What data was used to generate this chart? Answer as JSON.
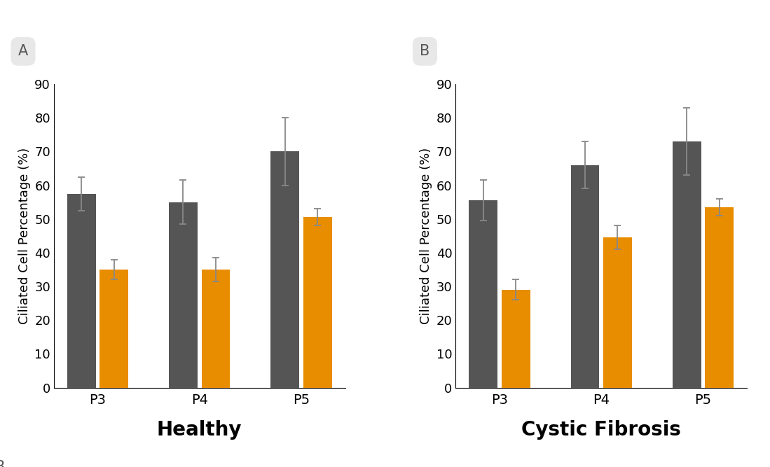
{
  "panel_A": {
    "title": "Healthy",
    "passages": [
      "P3",
      "P4",
      "P5"
    ],
    "gray_values": [
      57.5,
      55.0,
      70.0
    ],
    "orange_values": [
      35.0,
      35.0,
      50.5
    ],
    "gray_errors": [
      5.0,
      6.5,
      10.0
    ],
    "orange_errors": [
      3.0,
      3.5,
      2.5
    ]
  },
  "panel_B": {
    "title": "Cystic Fibrosis",
    "passages": [
      "P3",
      "P4",
      "P5"
    ],
    "gray_values": [
      55.5,
      66.0,
      73.0
    ],
    "orange_values": [
      29.0,
      44.5,
      53.5
    ],
    "gray_errors": [
      6.0,
      7.0,
      10.0
    ],
    "orange_errors": [
      3.0,
      3.5,
      2.5
    ]
  },
  "gray_color": "#555555",
  "orange_color": "#E88C00",
  "bar_width": 0.28,
  "bar_gap": 0.04,
  "ylim": [
    0,
    90
  ],
  "yticks": [
    0,
    10,
    20,
    30,
    40,
    50,
    60,
    70,
    80,
    90
  ],
  "ylabel": "Ciliated Cell Percentage (%)",
  "label_A": "A",
  "label_B": "B",
  "title_fontsize": 20,
  "ylabel_fontsize": 13,
  "tick_fontsize": 13,
  "xtick_fontsize": 14,
  "panel_label_fontsize": 15,
  "background_color": "#ffffff",
  "label_circle_color": "#e8e8e8",
  "error_color": "#888888"
}
